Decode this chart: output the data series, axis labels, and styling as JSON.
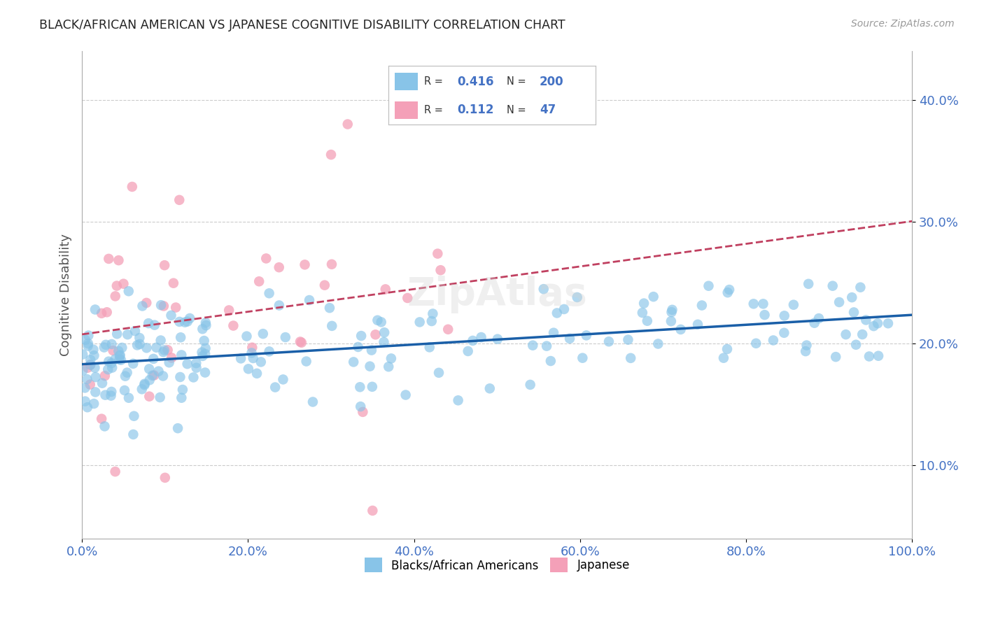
{
  "title": "BLACK/AFRICAN AMERICAN VS JAPANESE COGNITIVE DISABILITY CORRELATION CHART",
  "source": "Source: ZipAtlas.com",
  "ylabel": "Cognitive Disability",
  "xlim": [
    0,
    1.0
  ],
  "ylim": [
    0.04,
    0.44
  ],
  "xtick_labels": [
    "0.0%",
    "20.0%",
    "40.0%",
    "60.0%",
    "80.0%",
    "100.0%"
  ],
  "xtick_vals": [
    0.0,
    0.2,
    0.4,
    0.6,
    0.8,
    1.0
  ],
  "ytick_labels": [
    "10.0%",
    "20.0%",
    "30.0%",
    "40.0%"
  ],
  "ytick_vals": [
    0.1,
    0.2,
    0.3,
    0.4
  ],
  "blue_color": "#88c4e8",
  "pink_color": "#f4a0b8",
  "blue_line_color": "#1a5fa8",
  "pink_line_color": "#c04060",
  "legend_r_blue": "0.416",
  "legend_n_blue": "200",
  "legend_r_pink": "0.112",
  "legend_n_pink": "47",
  "watermark": "ZipAtlas",
  "background_color": "#ffffff",
  "grid_color": "#cccccc",
  "axis_color": "#aaaaaa",
  "title_color": "#222222",
  "label_color": "#555555",
  "tick_color": "#4472c4"
}
